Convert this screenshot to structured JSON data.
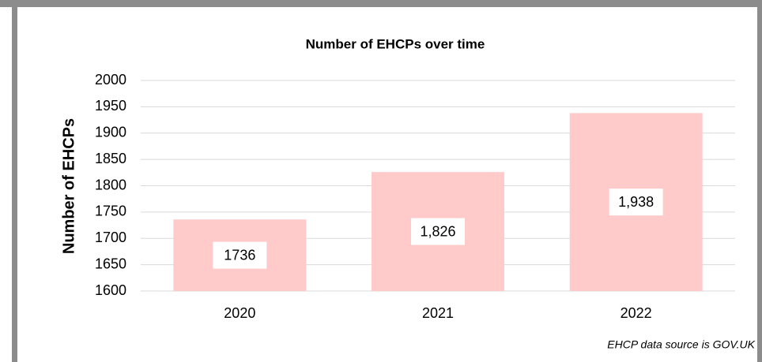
{
  "chart_data": {
    "type": "bar",
    "title": "Number of EHCPs over time",
    "y_label": "Number of EHCPs",
    "source": "EHCP data source is GOV.UK",
    "categories": [
      "2020",
      "2021",
      "2022"
    ],
    "values": [
      1736,
      1826,
      1938
    ],
    "value_labels": [
      "1736",
      "1,826",
      "1,938"
    ],
    "color": "#ffcaca",
    "ylim": [
      1600,
      2000
    ],
    "yticks": [
      1600,
      1650,
      1700,
      1750,
      1800,
      1850,
      1900,
      1950,
      2000
    ],
    "grid": true
  }
}
